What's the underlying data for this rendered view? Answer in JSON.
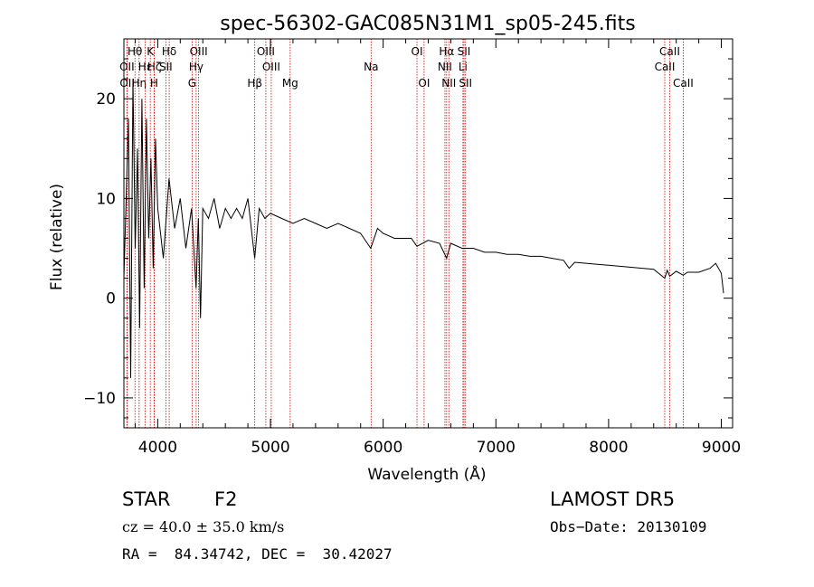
{
  "chart_data": {
    "type": "line",
    "title": "spec-56302-GAC085N31M1_sp05-245.fits",
    "xlabel": "Wavelength (Å)",
    "ylabel": "Flux (relative)",
    "xlim": [
      3700,
      9100
    ],
    "ylim": [
      -13,
      26
    ],
    "x_ticks": [
      4000,
      5000,
      6000,
      7000,
      8000,
      9000
    ],
    "x_tick_labels": [
      "4000",
      "5000",
      "6000",
      "7000",
      "8000",
      "9000"
    ],
    "y_ticks": [
      -10,
      0,
      10,
      20
    ],
    "y_tick_labels": [
      "−10",
      "0",
      "10",
      "20"
    ],
    "grid": false,
    "line_color": "#000000",
    "marker_color": "#cc0000",
    "series": [
      {
        "x": [
          3700,
          3720,
          3740,
          3760,
          3780,
          3800,
          3820,
          3840,
          3860,
          3880,
          3900,
          3920,
          3940,
          3960,
          3980,
          4000,
          4050,
          4100,
          4150,
          4200,
          4250,
          4300,
          4340,
          4360,
          4380,
          4400,
          4450,
          4500,
          4550,
          4600,
          4650,
          4700,
          4750,
          4800,
          4860,
          4900,
          4950,
          5000,
          5100,
          5200,
          5300,
          5400,
          5500,
          5600,
          5700,
          5800,
          5890,
          5950,
          6000,
          6100,
          6200,
          6250,
          6300,
          6400,
          6500,
          6563,
          6600,
          6700,
          6800,
          6900,
          7000,
          7100,
          7200,
          7300,
          7400,
          7500,
          7600,
          7650,
          7700,
          7800,
          7900,
          8000,
          8100,
          8200,
          8300,
          8400,
          8498,
          8520,
          8542,
          8600,
          8662,
          8700,
          8800,
          8900,
          8950,
          9000,
          9020
        ],
        "y": [
          2,
          10,
          18,
          -8,
          22,
          5,
          15,
          -3,
          20,
          1,
          18,
          6,
          14,
          3,
          16,
          9,
          4,
          12,
          7,
          10,
          5,
          9,
          1,
          8,
          -2,
          9,
          8,
          10,
          7,
          9,
          8,
          9,
          8,
          10,
          4,
          9,
          8,
          8.5,
          8,
          7.5,
          8,
          7.5,
          7,
          7.5,
          7,
          6.5,
          5,
          7,
          6.5,
          6,
          6,
          6,
          5.2,
          5.8,
          5.5,
          4,
          5.5,
          5,
          5,
          4.6,
          4.6,
          4.4,
          4.4,
          4.2,
          4.2,
          4,
          3.8,
          3,
          3.6,
          3.5,
          3.4,
          3.3,
          3.2,
          3.1,
          3.0,
          2.9,
          2.0,
          2.8,
          2.2,
          2.7,
          2.3,
          2.6,
          2.6,
          3.0,
          3.5,
          2.5,
          0.5
        ]
      }
    ],
    "lines": [
      {
        "name": "Hθ",
        "x": 3798,
        "row": 0
      },
      {
        "name": "OII",
        "x": 3727,
        "row": 1
      },
      {
        "name": "OII",
        "x": 3729,
        "row": 2
      },
      {
        "name": "Hη",
        "x": 3835,
        "row": 2
      },
      {
        "name": "Hε",
        "x": 3889,
        "row": 1
      },
      {
        "name": "Hζ",
        "x": 3970,
        "row": 1
      },
      {
        "name": "K",
        "x": 3934,
        "row": 0
      },
      {
        "name": "H",
        "x": 3968,
        "row": 2
      },
      {
        "name": "Hδ",
        "x": 4102,
        "row": 0
      },
      {
        "name": "SII",
        "x": 4072,
        "row": 1
      },
      {
        "name": "OIII",
        "x": 4363,
        "row": 0
      },
      {
        "name": "Hγ",
        "x": 4341,
        "row": 1
      },
      {
        "name": "G",
        "x": 4305,
        "row": 2
      },
      {
        "name": "Hβ",
        "x": 4861,
        "row": 2
      },
      {
        "name": "OIII",
        "x": 4959,
        "row": 0
      },
      {
        "name": "OIII",
        "x": 5007,
        "row": 1
      },
      {
        "name": "Mg",
        "x": 5175,
        "row": 2
      },
      {
        "name": "Na",
        "x": 5893,
        "row": 1
      },
      {
        "name": "OI",
        "x": 6300,
        "row": 0
      },
      {
        "name": "OI",
        "x": 6363,
        "row": 2
      },
      {
        "name": "Hα",
        "x": 6563,
        "row": 0
      },
      {
        "name": "NII",
        "x": 6548,
        "row": 1
      },
      {
        "name": "NII",
        "x": 6583,
        "row": 2
      },
      {
        "name": "SII",
        "x": 6717,
        "row": 0
      },
      {
        "name": "Li",
        "x": 6708,
        "row": 1
      },
      {
        "name": "SII",
        "x": 6731,
        "row": 2
      },
      {
        "name": "CaII",
        "x": 8542,
        "row": 0
      },
      {
        "name": "CaII",
        "x": 8498,
        "row": 1
      },
      {
        "name": "CaII",
        "x": 8662,
        "row": 2
      }
    ]
  },
  "info": {
    "object_type": "STAR",
    "subclass": "F2",
    "survey": "LAMOST DR5",
    "cz_text": "cz = 40.0 ± 35.0 km/s",
    "obs_date": "Obs−Date: 20130109",
    "coords": "RA =  84.34742, DEC =  30.42027"
  }
}
